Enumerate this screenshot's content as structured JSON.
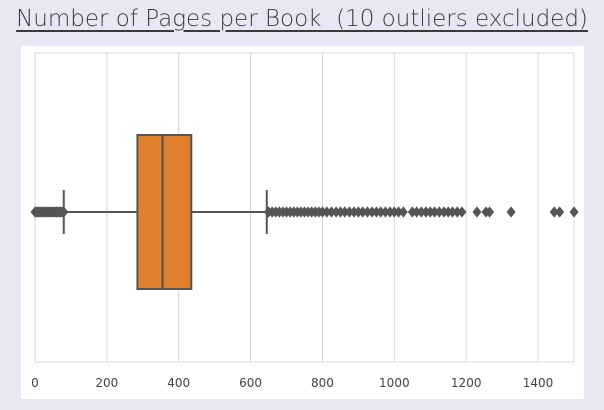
{
  "chart_data": {
    "type": "box",
    "title": "Number of Pages per Book  (10 outliers excluded)",
    "orientation": "horizontal",
    "xlim": [
      0,
      1500
    ],
    "x_ticks": [
      0,
      200,
      400,
      600,
      800,
      1000,
      1200,
      1400
    ],
    "grid": true,
    "box": {
      "min_whisker": 80,
      "q1": 285,
      "median": 355,
      "q3": 435,
      "max_whisker": 645,
      "color": "#e07f2c"
    },
    "low_outliers_range": [
      0,
      80
    ],
    "high_outliers": [
      650,
      660,
      670,
      680,
      690,
      700,
      710,
      720,
      730,
      740,
      750,
      760,
      770,
      780,
      790,
      800,
      812,
      825,
      838,
      850,
      862,
      875,
      888,
      900,
      912,
      925,
      938,
      950,
      962,
      975,
      988,
      1000,
      1012,
      1025,
      1050,
      1062,
      1075,
      1088,
      1100,
      1112,
      1125,
      1138,
      1150,
      1162,
      1175,
      1188,
      1230,
      1255,
      1265,
      1325,
      1445,
      1460,
      1500
    ]
  }
}
